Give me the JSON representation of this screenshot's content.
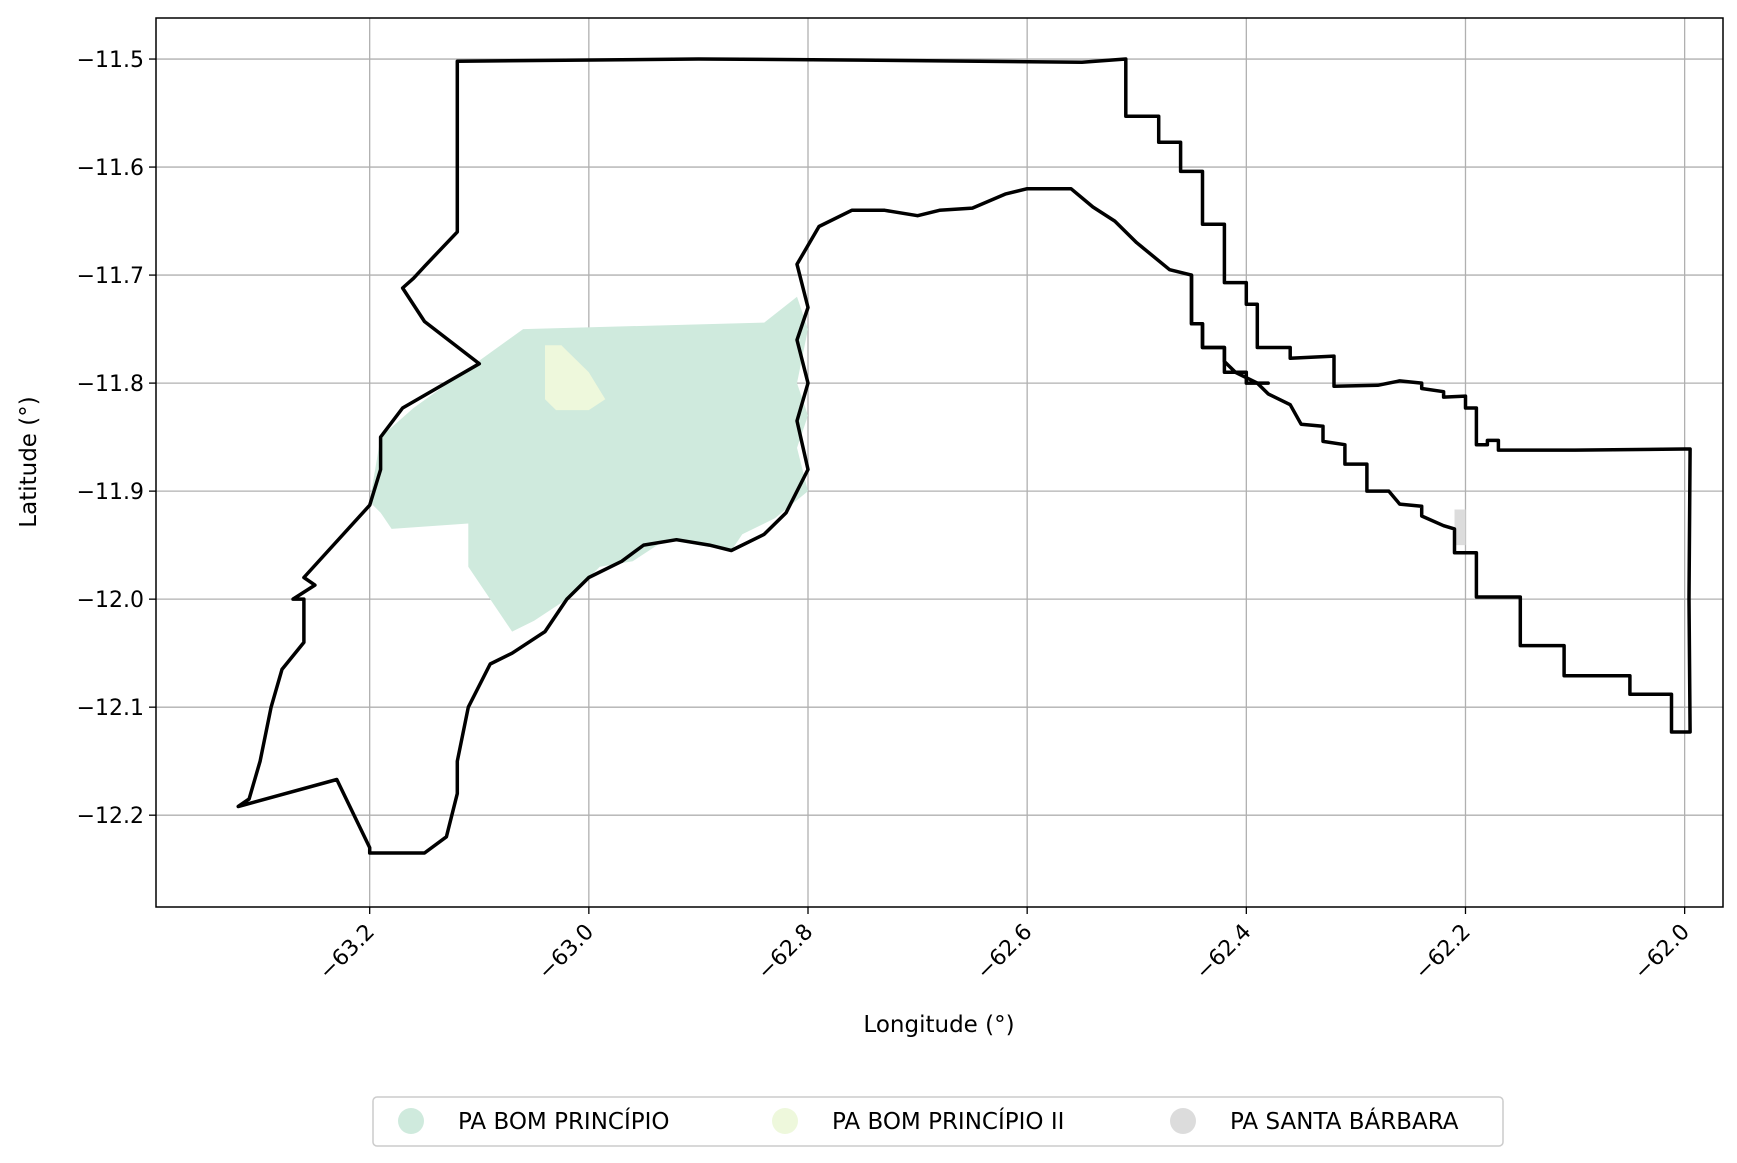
{
  "chart_data": {
    "type": "map",
    "xlabel": "Longitude (°)",
    "ylabel": "Latitude (°)",
    "xlim": [
      -63.395,
      -61.965
    ],
    "ylim": [
      -12.285,
      -11.462
    ],
    "xticks": [
      -63.2,
      -63.0,
      -62.8,
      -62.6,
      -62.4,
      -62.2,
      -62.0
    ],
    "yticks": [
      -11.5,
      -11.6,
      -11.7,
      -11.8,
      -11.9,
      -12.0,
      -12.1,
      -12.2
    ],
    "xtick_labels": [
      "−63.2",
      "−63.0",
      "−62.8",
      "−62.6",
      "−62.4",
      "−62.2",
      "−62.0"
    ],
    "ytick_labels": [
      "−11.5",
      "−11.6",
      "−11.7",
      "−11.8",
      "−11.9",
      "−12.0",
      "−12.1",
      "−12.2"
    ],
    "grid": true,
    "legend_position": "bottom-center",
    "legend": [
      {
        "name": "PA BOM PRINCÍPIO",
        "color": "#cfeadd"
      },
      {
        "name": "PA BOM PRINCÍPIO II",
        "color": "#eef8dc"
      },
      {
        "name": "PA SANTA BÁRBARA",
        "color": "#dcdcdc"
      }
    ],
    "boundary_color": "#000000",
    "areas": [
      {
        "name": "PA BOM PRINCÍPIO",
        "color": "#cfeadd",
        "coords": [
          [
            -63.16,
            -11.823
          ],
          [
            -63.06,
            -11.75
          ],
          [
            -62.84,
            -11.744
          ],
          [
            -62.81,
            -11.72
          ],
          [
            -62.8,
            -11.75
          ],
          [
            -62.81,
            -11.8
          ],
          [
            -62.8,
            -11.83
          ],
          [
            -62.81,
            -11.86
          ],
          [
            -62.8,
            -11.9
          ],
          [
            -62.83,
            -11.925
          ],
          [
            -62.86,
            -11.94
          ],
          [
            -62.87,
            -11.955
          ],
          [
            -62.9,
            -11.95
          ],
          [
            -62.93,
            -11.945
          ],
          [
            -62.96,
            -11.965
          ],
          [
            -62.99,
            -11.97
          ],
          [
            -63.02,
            -12.0
          ],
          [
            -63.05,
            -12.02
          ],
          [
            -63.07,
            -12.03
          ],
          [
            -63.11,
            -11.97
          ],
          [
            -63.11,
            -11.93
          ],
          [
            -63.18,
            -11.935
          ],
          [
            -63.19,
            -11.92
          ],
          [
            -63.2,
            -11.91
          ],
          [
            -63.19,
            -11.85
          ]
        ]
      },
      {
        "name": "PA BOM PRINCÍPIO II",
        "color": "#eef8dc",
        "coords": [
          [
            -63.04,
            -11.765
          ],
          [
            -63.025,
            -11.765
          ],
          [
            -63.02,
            -11.77
          ],
          [
            -63.0,
            -11.79
          ],
          [
            -62.985,
            -11.815
          ],
          [
            -63.0,
            -11.825
          ],
          [
            -63.03,
            -11.825
          ],
          [
            -63.04,
            -11.815
          ]
        ]
      },
      {
        "name": "PA SANTA BÁRBARA",
        "color": "#dcdcdc",
        "coords": [
          [
            -62.21,
            -11.917
          ],
          [
            -62.2,
            -11.917
          ],
          [
            -62.2,
            -11.95
          ],
          [
            -62.21,
            -11.95
          ]
        ]
      }
    ],
    "boundaries": [
      {
        "name": "outer",
        "coords": [
          [
            -63.12,
            -11.502
          ],
          [
            -62.9,
            -11.5
          ],
          [
            -62.75,
            -11.501
          ],
          [
            -62.55,
            -11.503
          ],
          [
            -62.51,
            -11.5
          ],
          [
            -62.51,
            -11.553
          ],
          [
            -62.48,
            -11.553
          ],
          [
            -62.48,
            -11.577
          ],
          [
            -62.46,
            -11.577
          ],
          [
            -62.46,
            -11.604
          ],
          [
            -62.44,
            -11.604
          ],
          [
            -62.44,
            -11.653
          ],
          [
            -62.42,
            -11.653
          ],
          [
            -62.42,
            -11.707
          ],
          [
            -62.4,
            -11.707
          ],
          [
            -62.4,
            -11.727
          ],
          [
            -62.39,
            -11.727
          ],
          [
            -62.39,
            -11.767
          ],
          [
            -62.36,
            -11.767
          ],
          [
            -62.36,
            -11.777
          ],
          [
            -62.32,
            -11.775
          ],
          [
            -62.32,
            -11.803
          ],
          [
            -62.28,
            -11.802
          ],
          [
            -62.26,
            -11.798
          ],
          [
            -62.24,
            -11.8
          ],
          [
            -62.24,
            -11.805
          ],
          [
            -62.22,
            -11.808
          ],
          [
            -62.22,
            -11.813
          ],
          [
            -62.2,
            -11.812
          ],
          [
            -62.2,
            -11.823
          ],
          [
            -62.19,
            -11.823
          ],
          [
            -62.19,
            -11.857
          ],
          [
            -62.18,
            -11.857
          ],
          [
            -62.18,
            -11.853
          ],
          [
            -62.17,
            -11.853
          ],
          [
            -62.17,
            -11.862
          ],
          [
            -62.1,
            -11.862
          ],
          [
            -62.0,
            -11.861
          ],
          [
            -61.995,
            -11.861
          ],
          [
            -61.996,
            -12.0
          ],
          [
            -61.995,
            -12.123
          ],
          [
            -62.012,
            -12.123
          ],
          [
            -62.012,
            -12.088
          ],
          [
            -62.05,
            -12.088
          ],
          [
            -62.05,
            -12.071
          ],
          [
            -62.11,
            -12.071
          ],
          [
            -62.11,
            -12.043
          ],
          [
            -62.15,
            -12.043
          ],
          [
            -62.15,
            -11.998
          ],
          [
            -62.19,
            -11.998
          ],
          [
            -62.19,
            -11.957
          ],
          [
            -62.21,
            -11.957
          ],
          [
            -62.21,
            -11.935
          ],
          [
            -62.22,
            -11.932
          ],
          [
            -62.24,
            -11.923
          ],
          [
            -62.24,
            -11.914
          ],
          [
            -62.26,
            -11.912
          ],
          [
            -62.27,
            -11.9
          ],
          [
            -62.29,
            -11.9
          ],
          [
            -62.29,
            -11.875
          ],
          [
            -62.31,
            -11.875
          ],
          [
            -62.31,
            -11.857
          ],
          [
            -62.33,
            -11.854
          ],
          [
            -62.33,
            -11.84
          ],
          [
            -62.35,
            -11.838
          ],
          [
            -62.36,
            -11.82
          ],
          [
            -62.38,
            -11.81
          ],
          [
            -62.39,
            -11.8
          ],
          [
            -62.41,
            -11.79
          ],
          [
            -62.42,
            -11.78
          ],
          [
            -62.42,
            -11.767
          ],
          [
            -62.44,
            -11.767
          ],
          [
            -62.44,
            -11.745
          ],
          [
            -62.45,
            -11.745
          ],
          [
            -62.45,
            -11.7
          ],
          [
            -62.47,
            -11.695
          ],
          [
            -62.5,
            -11.67
          ],
          [
            -62.52,
            -11.65
          ],
          [
            -62.54,
            -11.637
          ],
          [
            -62.56,
            -11.62
          ],
          [
            -62.6,
            -11.62
          ],
          [
            -62.62,
            -11.625
          ],
          [
            -62.65,
            -11.638
          ],
          [
            -62.68,
            -11.64
          ],
          [
            -62.7,
            -11.645
          ],
          [
            -62.73,
            -11.64
          ],
          [
            -62.76,
            -11.64
          ],
          [
            -62.79,
            -11.655
          ],
          [
            -62.81,
            -11.69
          ],
          [
            -62.8,
            -11.73
          ],
          [
            -62.81,
            -11.76
          ],
          [
            -62.8,
            -11.8
          ],
          [
            -62.81,
            -11.835
          ],
          [
            -62.8,
            -11.88
          ],
          [
            -62.82,
            -11.92
          ],
          [
            -62.84,
            -11.94
          ],
          [
            -62.87,
            -11.955
          ],
          [
            -62.89,
            -11.95
          ],
          [
            -62.92,
            -11.945
          ],
          [
            -62.95,
            -11.95
          ],
          [
            -62.97,
            -11.965
          ],
          [
            -63.0,
            -11.98
          ],
          [
            -63.02,
            -12.0
          ],
          [
            -63.04,
            -12.03
          ],
          [
            -63.07,
            -12.05
          ],
          [
            -63.09,
            -12.06
          ],
          [
            -63.11,
            -12.1
          ],
          [
            -63.12,
            -12.15
          ],
          [
            -63.12,
            -12.18
          ],
          [
            -63.13,
            -12.22
          ],
          [
            -63.15,
            -12.235
          ],
          [
            -63.18,
            -12.235
          ],
          [
            -63.2,
            -12.235
          ],
          [
            -63.2,
            -12.23
          ],
          [
            -63.23,
            -12.167
          ],
          [
            -63.32,
            -12.192
          ],
          [
            -63.31,
            -12.185
          ],
          [
            -63.3,
            -12.15
          ],
          [
            -63.29,
            -12.1
          ],
          [
            -63.28,
            -12.065
          ],
          [
            -63.26,
            -12.04
          ],
          [
            -63.26,
            -12.0
          ],
          [
            -63.27,
            -12.0
          ],
          [
            -63.25,
            -11.987
          ],
          [
            -63.26,
            -11.98
          ],
          [
            -63.2,
            -11.913
          ],
          [
            -63.19,
            -11.88
          ],
          [
            -63.19,
            -11.85
          ],
          [
            -63.17,
            -11.823
          ],
          [
            -63.1,
            -11.782
          ],
          [
            -63.15,
            -11.743
          ],
          [
            -63.17,
            -11.712
          ],
          [
            -63.16,
            -11.703
          ],
          [
            -63.15,
            -11.692
          ],
          [
            -63.12,
            -11.66
          ],
          [
            -63.12,
            -11.55
          ],
          [
            -63.12,
            -11.502
          ]
        ]
      },
      {
        "name": "inner-stair",
        "coords": [
          [
            -62.45,
            -11.7
          ],
          [
            -62.45,
            -11.745
          ],
          [
            -62.44,
            -11.745
          ],
          [
            -62.44,
            -11.767
          ],
          [
            -62.42,
            -11.767
          ],
          [
            -62.42,
            -11.79
          ],
          [
            -62.4,
            -11.79
          ],
          [
            -62.4,
            -11.8
          ],
          [
            -62.38,
            -11.8
          ]
        ]
      }
    ]
  }
}
